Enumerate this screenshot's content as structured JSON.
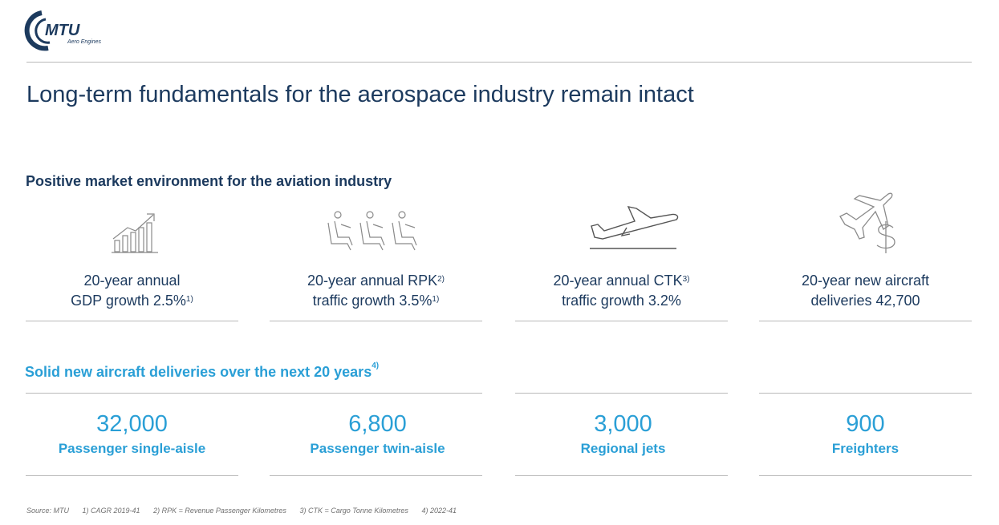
{
  "logo": {
    "name": "MTU",
    "sub": "Aero Engines"
  },
  "title": "Long-term fundamentals for the aerospace industry remain intact",
  "section1": {
    "heading": "Positive market environment for the aviation industry"
  },
  "kpis": [
    {
      "icon": "chart-growth-icon",
      "line1": "20-year annual",
      "line2": "GDP growth 2.5%",
      "sup1": "",
      "sup2": "1)"
    },
    {
      "icon": "passenger-seats-icon",
      "line1": "20-year annual RPK",
      "line2": "traffic growth 3.5%",
      "sup1": "2)",
      "sup2": "1)"
    },
    {
      "icon": "airplane-takeoff-icon",
      "line1": "20-year annual CTK",
      "line2": "traffic growth 3.2%",
      "sup1": "3)",
      "sup2": ""
    },
    {
      "icon": "airplane-dollar-icon",
      "line1": "20-year new aircraft",
      "line2": "deliveries 42,700",
      "sup1": "",
      "sup2": ""
    }
  ],
  "section2": {
    "heading": "Solid new aircraft deliveries over the next 20 years",
    "sup": "4)"
  },
  "deliveries": [
    {
      "value": "32,000",
      "label": "Passenger single-aisle"
    },
    {
      "value": "6,800",
      "label": "Passenger twin-aisle"
    },
    {
      "value": "3,000",
      "label": "Regional jets"
    },
    {
      "value": "900",
      "label": "Freighters"
    }
  ],
  "footer": {
    "source": "Source: MTU",
    "notes": [
      "1) CAGR 2019-41",
      "2) RPK = Revenue Passenger Kilometres",
      "3) CTK = Cargo Tonne Kilometres",
      "4) 2022-41"
    ]
  },
  "colors": {
    "navy": "#1c3a5e",
    "accent": "#2a9fd6",
    "rule": "#b9b9b9"
  }
}
